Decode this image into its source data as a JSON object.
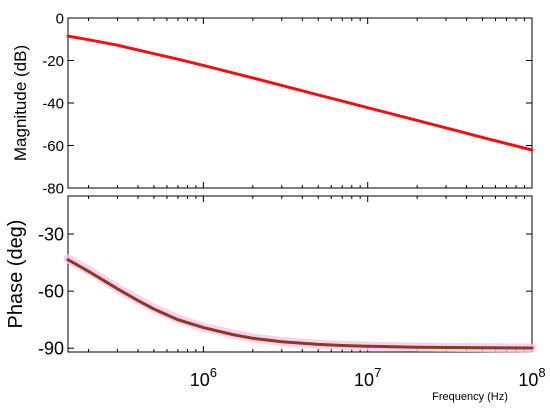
{
  "chart_data": [
    {
      "type": "line",
      "panel": "magnitude",
      "ylabel": "Magnitude (dB)",
      "xscale": "log",
      "xlim": [
        150000,
        100000000
      ],
      "ylim": [
        -80,
        0
      ],
      "yticks": [
        0,
        -20,
        -40,
        -60,
        -80
      ],
      "ytick_labels": [
        "0",
        "-20",
        "-40",
        "-60",
        "-80"
      ],
      "grid": false,
      "series": [
        {
          "color": "#ee1111",
          "x": [
            150000,
            200000,
            300000,
            500000,
            700000,
            1000000,
            2000000,
            3000000,
            5000000,
            7000000,
            10000000,
            20000000,
            30000000,
            50000000,
            70000000,
            100000000
          ],
          "y": [
            -8.5,
            -10.2,
            -12.8,
            -16.8,
            -19.4,
            -22.3,
            -28.2,
            -31.7,
            -36.2,
            -39.1,
            -42.2,
            -48.2,
            -51.7,
            -56.2,
            -59.1,
            -62.1
          ]
        }
      ]
    },
    {
      "type": "line",
      "panel": "phase",
      "ylabel": "Phase (deg)",
      "xlabel": "Frequency  (Hz)",
      "xscale": "log",
      "xlim": [
        150000,
        100000000
      ],
      "ylim": [
        -92,
        -10
      ],
      "yticks": [
        -30,
        -60,
        -90
      ],
      "ytick_labels": [
        "-30",
        "-60",
        "-90"
      ],
      "xticks": [
        1000000,
        10000000,
        100000000
      ],
      "xtick_base": "10",
      "xtick_exponents": [
        "6",
        "7",
        "8"
      ],
      "grid": false,
      "series": [
        {
          "color": "#8b3a1e",
          "x": [
            150000,
            200000,
            300000,
            400000,
            500000,
            700000,
            1000000,
            1500000,
            2000000,
            3000000,
            5000000,
            7000000,
            10000000,
            20000000,
            50000000,
            100000000
          ],
          "y": [
            -43.5,
            -49.6,
            -58.8,
            -65.0,
            -69.4,
            -75.0,
            -79.2,
            -82.8,
            -84.8,
            -86.6,
            -88.0,
            -88.6,
            -89.0,
            -89.5,
            -89.8,
            -89.9
          ]
        },
        {
          "color": "#f7c6ec",
          "x": [
            150000,
            200000,
            300000,
            400000,
            500000,
            700000,
            1000000,
            1500000,
            2000000,
            3000000,
            5000000,
            7000000,
            10000000,
            20000000,
            50000000,
            100000000
          ],
          "y": [
            -43.0,
            -49.0,
            -58.5,
            -64.5,
            -69.0,
            -74.5,
            -79.0,
            -82.5,
            -84.6,
            -86.5,
            -87.9,
            -88.5,
            -88.9,
            -89.4,
            -89.7,
            -89.9
          ]
        }
      ]
    }
  ]
}
